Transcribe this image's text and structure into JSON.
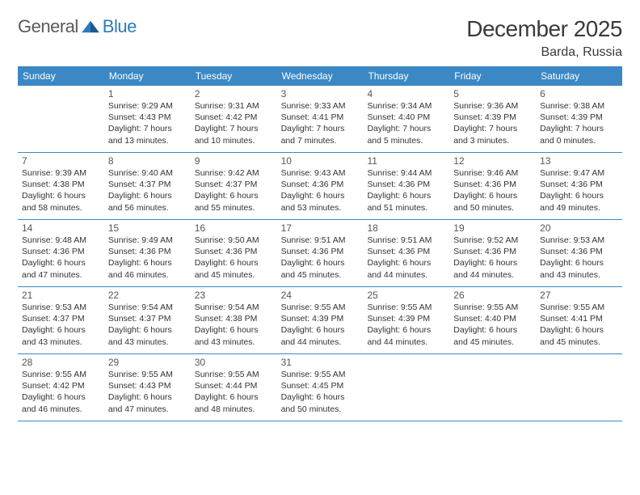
{
  "logo": {
    "text1": "General",
    "text2": "Blue"
  },
  "title": "December 2025",
  "location": "Barda, Russia",
  "header_bg": "#3b88c4",
  "header_fg": "#ffffff",
  "divider_color": "#3b88c4",
  "text_color": "#333333",
  "daynum_color": "#555555",
  "day_names": [
    "Sunday",
    "Monday",
    "Tuesday",
    "Wednesday",
    "Thursday",
    "Friday",
    "Saturday"
  ],
  "weeks": [
    [
      null,
      {
        "n": "1",
        "sr": "9:29 AM",
        "ss": "4:43 PM",
        "dl": "7 hours and 13 minutes."
      },
      {
        "n": "2",
        "sr": "9:31 AM",
        "ss": "4:42 PM",
        "dl": "7 hours and 10 minutes."
      },
      {
        "n": "3",
        "sr": "9:33 AM",
        "ss": "4:41 PM",
        "dl": "7 hours and 7 minutes."
      },
      {
        "n": "4",
        "sr": "9:34 AM",
        "ss": "4:40 PM",
        "dl": "7 hours and 5 minutes."
      },
      {
        "n": "5",
        "sr": "9:36 AM",
        "ss": "4:39 PM",
        "dl": "7 hours and 3 minutes."
      },
      {
        "n": "6",
        "sr": "9:38 AM",
        "ss": "4:39 PM",
        "dl": "7 hours and 0 minutes."
      }
    ],
    [
      {
        "n": "7",
        "sr": "9:39 AM",
        "ss": "4:38 PM",
        "dl": "6 hours and 58 minutes."
      },
      {
        "n": "8",
        "sr": "9:40 AM",
        "ss": "4:37 PM",
        "dl": "6 hours and 56 minutes."
      },
      {
        "n": "9",
        "sr": "9:42 AM",
        "ss": "4:37 PM",
        "dl": "6 hours and 55 minutes."
      },
      {
        "n": "10",
        "sr": "9:43 AM",
        "ss": "4:36 PM",
        "dl": "6 hours and 53 minutes."
      },
      {
        "n": "11",
        "sr": "9:44 AM",
        "ss": "4:36 PM",
        "dl": "6 hours and 51 minutes."
      },
      {
        "n": "12",
        "sr": "9:46 AM",
        "ss": "4:36 PM",
        "dl": "6 hours and 50 minutes."
      },
      {
        "n": "13",
        "sr": "9:47 AM",
        "ss": "4:36 PM",
        "dl": "6 hours and 49 minutes."
      }
    ],
    [
      {
        "n": "14",
        "sr": "9:48 AM",
        "ss": "4:36 PM",
        "dl": "6 hours and 47 minutes."
      },
      {
        "n": "15",
        "sr": "9:49 AM",
        "ss": "4:36 PM",
        "dl": "6 hours and 46 minutes."
      },
      {
        "n": "16",
        "sr": "9:50 AM",
        "ss": "4:36 PM",
        "dl": "6 hours and 45 minutes."
      },
      {
        "n": "17",
        "sr": "9:51 AM",
        "ss": "4:36 PM",
        "dl": "6 hours and 45 minutes."
      },
      {
        "n": "18",
        "sr": "9:51 AM",
        "ss": "4:36 PM",
        "dl": "6 hours and 44 minutes."
      },
      {
        "n": "19",
        "sr": "9:52 AM",
        "ss": "4:36 PM",
        "dl": "6 hours and 44 minutes."
      },
      {
        "n": "20",
        "sr": "9:53 AM",
        "ss": "4:36 PM",
        "dl": "6 hours and 43 minutes."
      }
    ],
    [
      {
        "n": "21",
        "sr": "9:53 AM",
        "ss": "4:37 PM",
        "dl": "6 hours and 43 minutes."
      },
      {
        "n": "22",
        "sr": "9:54 AM",
        "ss": "4:37 PM",
        "dl": "6 hours and 43 minutes."
      },
      {
        "n": "23",
        "sr": "9:54 AM",
        "ss": "4:38 PM",
        "dl": "6 hours and 43 minutes."
      },
      {
        "n": "24",
        "sr": "9:55 AM",
        "ss": "4:39 PM",
        "dl": "6 hours and 44 minutes."
      },
      {
        "n": "25",
        "sr": "9:55 AM",
        "ss": "4:39 PM",
        "dl": "6 hours and 44 minutes."
      },
      {
        "n": "26",
        "sr": "9:55 AM",
        "ss": "4:40 PM",
        "dl": "6 hours and 45 minutes."
      },
      {
        "n": "27",
        "sr": "9:55 AM",
        "ss": "4:41 PM",
        "dl": "6 hours and 45 minutes."
      }
    ],
    [
      {
        "n": "28",
        "sr": "9:55 AM",
        "ss": "4:42 PM",
        "dl": "6 hours and 46 minutes."
      },
      {
        "n": "29",
        "sr": "9:55 AM",
        "ss": "4:43 PM",
        "dl": "6 hours and 47 minutes."
      },
      {
        "n": "30",
        "sr": "9:55 AM",
        "ss": "4:44 PM",
        "dl": "6 hours and 48 minutes."
      },
      {
        "n": "31",
        "sr": "9:55 AM",
        "ss": "4:45 PM",
        "dl": "6 hours and 50 minutes."
      },
      null,
      null,
      null
    ]
  ],
  "labels": {
    "sunrise": "Sunrise:",
    "sunset": "Sunset:",
    "daylight": "Daylight:"
  }
}
